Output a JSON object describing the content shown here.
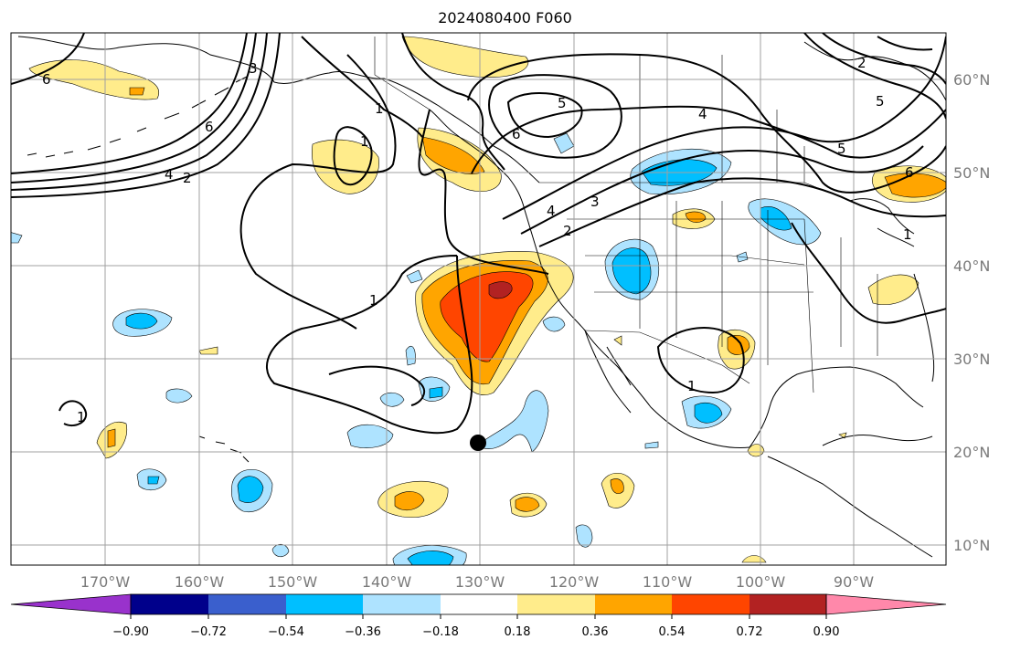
{
  "title": "2024080400 F060",
  "map": {
    "lon_labels": [
      "170°W",
      "160°W",
      "150°W",
      "140°W",
      "130°W",
      "120°W",
      "110°W",
      "100°W",
      "90°W"
    ],
    "lat_labels": [
      "60°N",
      "50°N",
      "40°N",
      "30°N",
      "20°N",
      "10°N"
    ],
    "contour_labels": [
      "6",
      "6",
      "6",
      "6",
      "5",
      "5",
      "5",
      "4",
      "4",
      "4",
      "3",
      "3",
      "2",
      "2",
      "2",
      "1",
      "1",
      "1",
      "1",
      "1",
      "1"
    ],
    "marker": {
      "lon": -130,
      "lat": 21
    }
  },
  "colorbar": {
    "ticks": [
      "−0.90",
      "−0.72",
      "−0.54",
      "−0.36",
      "−0.18",
      "0.18",
      "0.36",
      "0.54",
      "0.72",
      "0.90"
    ],
    "colors": [
      "#9932cc",
      "#00008b",
      "#3a5fcd",
      "#00bfff",
      "#aee3ff",
      "#ffffff",
      "#ffec8b",
      "#ffa500",
      "#ff4500",
      "#b22222",
      "#ff88aa"
    ]
  },
  "colors": {
    "neg_light": "#aee3ff",
    "neg_mid": "#00bfff",
    "pos_light": "#ffec8b",
    "pos_mid": "#ffa500",
    "pos_strong": "#ff4500",
    "pos_max": "#b22222"
  }
}
